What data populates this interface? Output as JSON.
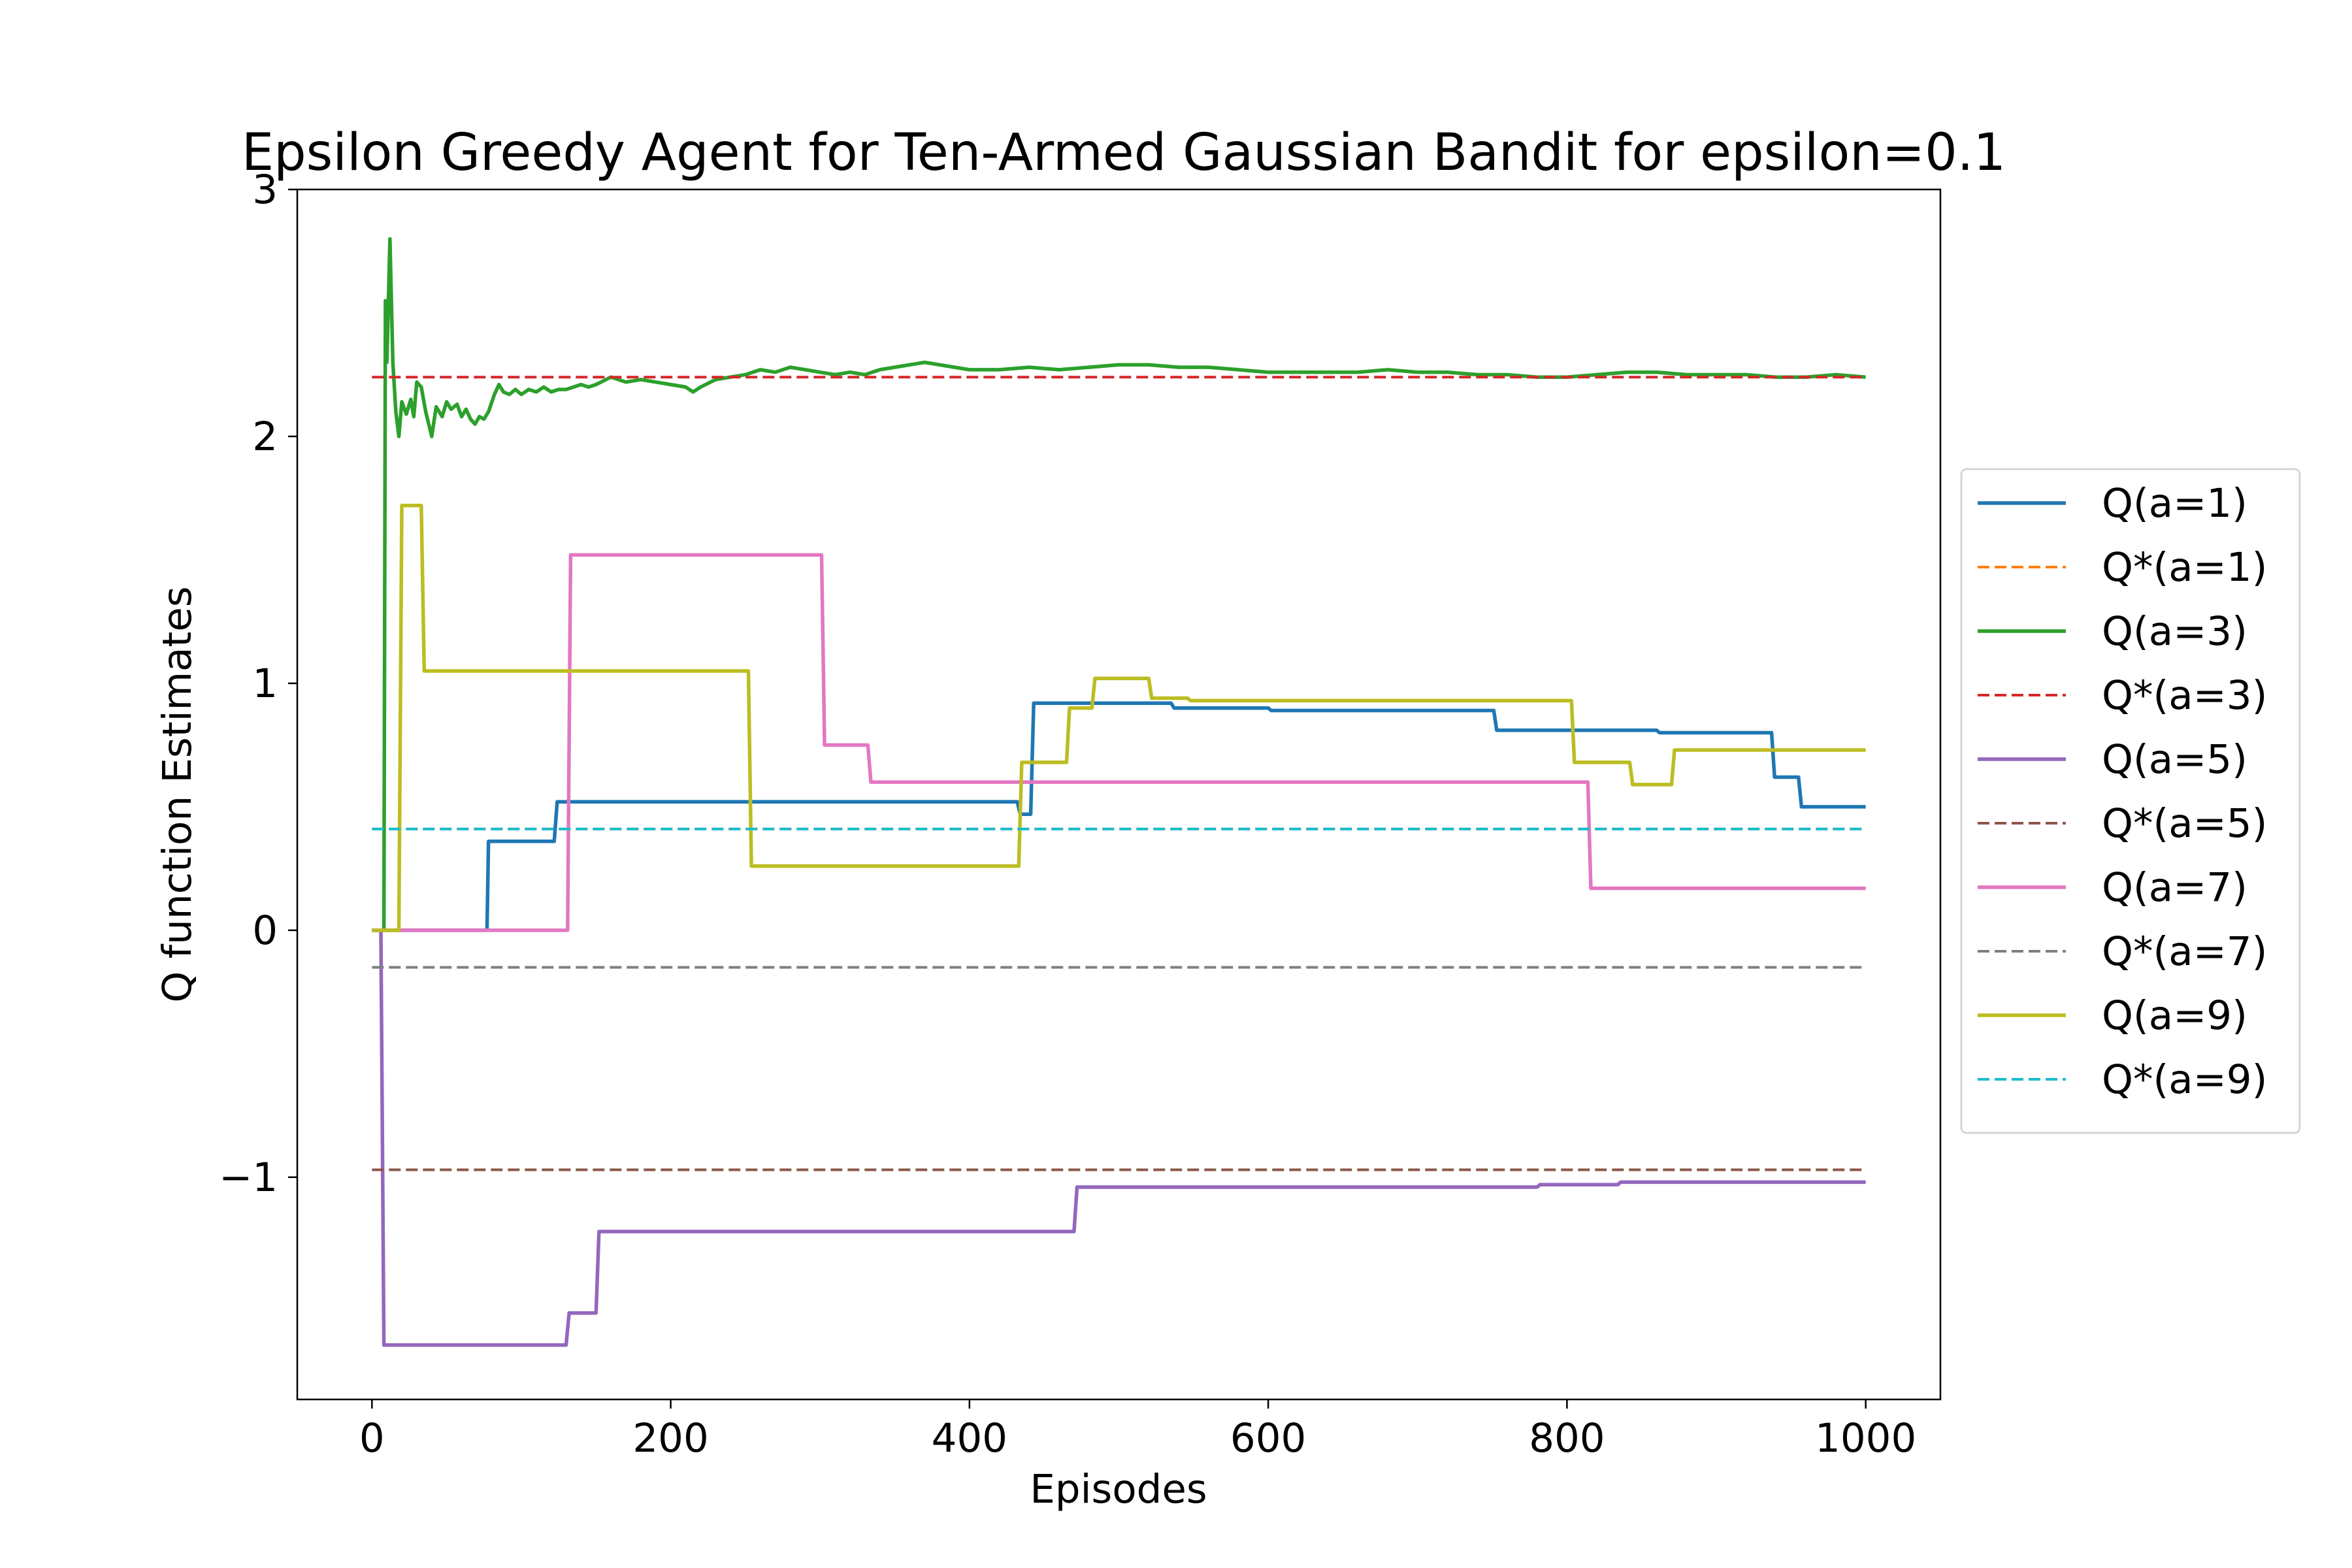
{
  "chart_data": {
    "type": "line",
    "title": "Epsilon Greedy Agent for Ten-Armed Gaussian Bandit for epsilon=0.1",
    "xlabel": "Episodes",
    "ylabel": "Q function Estimates",
    "xlim": [
      -50,
      1050
    ],
    "ylim": [
      -1.9,
      3.0
    ],
    "xticks": [
      0,
      200,
      400,
      600,
      800,
      1000
    ],
    "xtick_labels": [
      "0",
      "200",
      "400",
      "600",
      "800",
      "1000"
    ],
    "yticks": [
      -1,
      0,
      1,
      2,
      3
    ],
    "ytick_labels": [
      "−1",
      "0",
      "1",
      "2",
      "3"
    ],
    "grid": false,
    "legend_position": "center-right-outside",
    "series": [
      {
        "name": "Q(a=1)",
        "style": "solid",
        "color": "#1f77b4",
        "points": [
          [
            0,
            0
          ],
          [
            77,
            0
          ],
          [
            78,
            0.36
          ],
          [
            122,
            0.36
          ],
          [
            124,
            0.52
          ],
          [
            432,
            0.52
          ],
          [
            434,
            0.47
          ],
          [
            441,
            0.47
          ],
          [
            443,
            0.92
          ],
          [
            535,
            0.92
          ],
          [
            537,
            0.9
          ],
          [
            600,
            0.9
          ],
          [
            602,
            0.89
          ],
          [
            751,
            0.89
          ],
          [
            753,
            0.81
          ],
          [
            860,
            0.81
          ],
          [
            862,
            0.8
          ],
          [
            937,
            0.8
          ],
          [
            939,
            0.62
          ],
          [
            955,
            0.62
          ],
          [
            957,
            0.5
          ],
          [
            1000,
            0.5
          ]
        ]
      },
      {
        "name": "Q*(a=1)",
        "style": "dashed",
        "color": "#ff7f0e",
        "points": [
          [
            0,
            0.41
          ],
          [
            1000,
            0.41
          ]
        ]
      },
      {
        "name": "Q(a=3)",
        "style": "solid",
        "color": "#2ca02c",
        "points": [
          [
            0,
            0
          ],
          [
            8,
            0
          ],
          [
            9,
            2.55
          ],
          [
            10,
            2.3
          ],
          [
            12,
            2.8
          ],
          [
            14,
            2.3
          ],
          [
            16,
            2.1
          ],
          [
            18,
            2.0
          ],
          [
            20,
            2.14
          ],
          [
            23,
            2.09
          ],
          [
            26,
            2.15
          ],
          [
            28,
            2.08
          ],
          [
            30,
            2.22
          ],
          [
            33,
            2.2
          ],
          [
            36,
            2.1
          ],
          [
            38,
            2.05
          ],
          [
            40,
            2.0
          ],
          [
            43,
            2.12
          ],
          [
            47,
            2.08
          ],
          [
            50,
            2.14
          ],
          [
            53,
            2.11
          ],
          [
            57,
            2.13
          ],
          [
            60,
            2.08
          ],
          [
            63,
            2.11
          ],
          [
            66,
            2.07
          ],
          [
            69,
            2.05
          ],
          [
            72,
            2.08
          ],
          [
            75,
            2.07
          ],
          [
            78,
            2.1
          ],
          [
            82,
            2.17
          ],
          [
            85,
            2.21
          ],
          [
            88,
            2.18
          ],
          [
            92,
            2.17
          ],
          [
            96,
            2.19
          ],
          [
            100,
            2.17
          ],
          [
            105,
            2.19
          ],
          [
            110,
            2.18
          ],
          [
            115,
            2.2
          ],
          [
            120,
            2.18
          ],
          [
            125,
            2.19
          ],
          [
            130,
            2.19
          ],
          [
            135,
            2.2
          ],
          [
            140,
            2.21
          ],
          [
            145,
            2.2
          ],
          [
            150,
            2.21
          ],
          [
            160,
            2.24
          ],
          [
            170,
            2.22
          ],
          [
            180,
            2.23
          ],
          [
            190,
            2.22
          ],
          [
            200,
            2.21
          ],
          [
            210,
            2.2
          ],
          [
            215,
            2.18
          ],
          [
            220,
            2.2
          ],
          [
            230,
            2.23
          ],
          [
            240,
            2.24
          ],
          [
            250,
            2.25
          ],
          [
            260,
            2.27
          ],
          [
            270,
            2.26
          ],
          [
            280,
            2.28
          ],
          [
            290,
            2.27
          ],
          [
            300,
            2.26
          ],
          [
            310,
            2.25
          ],
          [
            320,
            2.26
          ],
          [
            330,
            2.25
          ],
          [
            340,
            2.27
          ],
          [
            350,
            2.28
          ],
          [
            360,
            2.29
          ],
          [
            370,
            2.3
          ],
          [
            380,
            2.29
          ],
          [
            390,
            2.28
          ],
          [
            400,
            2.27
          ],
          [
            420,
            2.27
          ],
          [
            440,
            2.28
          ],
          [
            460,
            2.27
          ],
          [
            480,
            2.28
          ],
          [
            500,
            2.29
          ],
          [
            520,
            2.29
          ],
          [
            540,
            2.28
          ],
          [
            560,
            2.28
          ],
          [
            580,
            2.27
          ],
          [
            600,
            2.26
          ],
          [
            620,
            2.26
          ],
          [
            640,
            2.26
          ],
          [
            660,
            2.26
          ],
          [
            680,
            2.27
          ],
          [
            700,
            2.26
          ],
          [
            720,
            2.26
          ],
          [
            740,
            2.25
          ],
          [
            760,
            2.25
          ],
          [
            780,
            2.24
          ],
          [
            800,
            2.24
          ],
          [
            820,
            2.25
          ],
          [
            840,
            2.26
          ],
          [
            860,
            2.26
          ],
          [
            880,
            2.25
          ],
          [
            900,
            2.25
          ],
          [
            920,
            2.25
          ],
          [
            940,
            2.24
          ],
          [
            960,
            2.24
          ],
          [
            980,
            2.25
          ],
          [
            1000,
            2.24
          ]
        ]
      },
      {
        "name": "Q*(a=3)",
        "style": "dashed",
        "color": "#d62728",
        "points": [
          [
            0,
            2.24
          ],
          [
            1000,
            2.24
          ]
        ]
      },
      {
        "name": "Q(a=5)",
        "style": "solid",
        "color": "#9467bd",
        "points": [
          [
            0,
            0
          ],
          [
            6,
            0
          ],
          [
            8,
            -1.68
          ],
          [
            130,
            -1.68
          ],
          [
            132,
            -1.55
          ],
          [
            150,
            -1.55
          ],
          [
            152,
            -1.22
          ],
          [
            470,
            -1.22
          ],
          [
            472,
            -1.04
          ],
          [
            780,
            -1.04
          ],
          [
            782,
            -1.03
          ],
          [
            834,
            -1.03
          ],
          [
            836,
            -1.02
          ],
          [
            1000,
            -1.02
          ]
        ]
      },
      {
        "name": "Q*(a=5)",
        "style": "dashed",
        "color": "#8c564b",
        "points": [
          [
            0,
            -0.97
          ],
          [
            1000,
            -0.97
          ]
        ]
      },
      {
        "name": "Q(a=7)",
        "style": "solid",
        "color": "#e377c2",
        "points": [
          [
            0,
            0
          ],
          [
            131,
            0
          ],
          [
            133,
            1.52
          ],
          [
            301,
            1.52
          ],
          [
            303,
            0.75
          ],
          [
            332,
            0.75
          ],
          [
            334,
            0.6
          ],
          [
            814,
            0.6
          ],
          [
            816,
            0.17
          ],
          [
            1000,
            0.17
          ]
        ]
      },
      {
        "name": "Q*(a=7)",
        "style": "dashed",
        "color": "#7f7f7f",
        "points": [
          [
            0,
            -0.15
          ],
          [
            1000,
            -0.15
          ]
        ]
      },
      {
        "name": "Q(a=9)",
        "style": "solid",
        "color": "#bcbd22",
        "points": [
          [
            0,
            0
          ],
          [
            18,
            0
          ],
          [
            20,
            1.72
          ],
          [
            33,
            1.72
          ],
          [
            35,
            1.05
          ],
          [
            252,
            1.05
          ],
          [
            254,
            0.26
          ],
          [
            433,
            0.26
          ],
          [
            435,
            0.68
          ],
          [
            465,
            0.68
          ],
          [
            467,
            0.9
          ],
          [
            482,
            0.9
          ],
          [
            484,
            1.02
          ],
          [
            520,
            1.02
          ],
          [
            522,
            0.94
          ],
          [
            546,
            0.94
          ],
          [
            548,
            0.93
          ],
          [
            803,
            0.93
          ],
          [
            805,
            0.68
          ],
          [
            842,
            0.68
          ],
          [
            844,
            0.59
          ],
          [
            870,
            0.59
          ],
          [
            872,
            0.73
          ],
          [
            1000,
            0.73
          ]
        ]
      },
      {
        "name": "Q*(a=9)",
        "style": "dashed",
        "color": "#17becf",
        "points": [
          [
            0,
            0.41
          ],
          [
            1000,
            0.41
          ]
        ]
      }
    ]
  }
}
